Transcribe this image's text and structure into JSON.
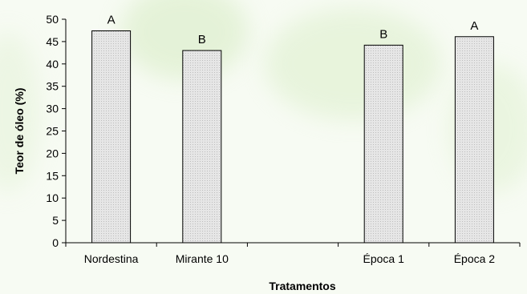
{
  "chart_data": {
    "type": "bar",
    "categories": [
      "Nordestina",
      "Mirante 10",
      "",
      "Época 1",
      "Época 2"
    ],
    "values": [
      47.4,
      43.0,
      null,
      44.2,
      46.1
    ],
    "bar_labels": [
      "A",
      "B",
      "",
      "B",
      "A"
    ],
    "xlabel": "Tratamentos",
    "ylabel": "Teor de óleo (%)",
    "ylim": [
      0,
      50
    ],
    "yticks": [
      0,
      5,
      10,
      15,
      20,
      25,
      30,
      35,
      40,
      45,
      50
    ],
    "grid": false,
    "bar_fill": "#e6e6e6",
    "bar_stroke": "#000000"
  }
}
